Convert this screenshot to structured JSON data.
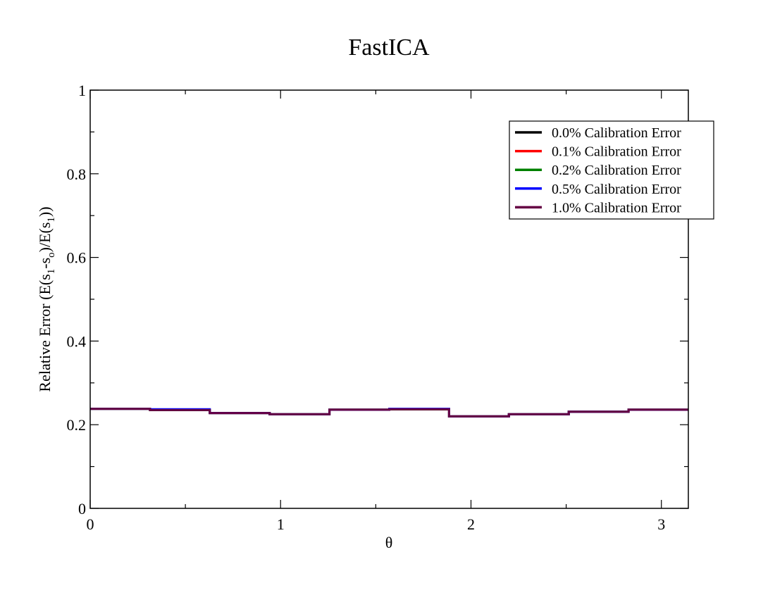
{
  "chart_data": {
    "type": "line",
    "title": "FastICA",
    "xlabel": "θ",
    "ylabel": {
      "prefix": "Relative Error (E(s",
      "sub1": "1",
      "mid1": "-s",
      "sub2": "o",
      "mid2": ")/E(s",
      "sub3": "1",
      "suffix": "))"
    },
    "xlim": [
      0,
      3.1416
    ],
    "ylim": [
      0,
      1
    ],
    "x_ticks": [
      0,
      1,
      2,
      3
    ],
    "x_tick_labels": [
      "0",
      "1",
      "2",
      "3"
    ],
    "y_ticks": [
      0,
      0.2,
      0.4,
      0.6,
      0.8,
      1
    ],
    "y_tick_labels": [
      "0",
      "0.2",
      "0.4",
      "0.6",
      "0.8",
      "1"
    ],
    "grid": false,
    "legend_position": "top-right",
    "step": true,
    "bin_edges": [
      0,
      0.3142,
      0.6283,
      0.9425,
      1.2566,
      1.5708,
      1.885,
      2.1991,
      2.5133,
      2.8274,
      3.1416
    ],
    "series": [
      {
        "name": "0.0% Calibration Error",
        "color": "#000000",
        "values": [
          0.238,
          0.235,
          0.228,
          0.225,
          0.236,
          0.237,
          0.22,
          0.225,
          0.231,
          0.236
        ]
      },
      {
        "name": "0.1% Calibration Error",
        "color": "#ff0000",
        "values": [
          0.238,
          0.235,
          0.228,
          0.225,
          0.236,
          0.237,
          0.22,
          0.225,
          0.231,
          0.236
        ]
      },
      {
        "name": "0.2% Calibration Error",
        "color": "#008000",
        "values": [
          0.238,
          0.235,
          0.228,
          0.225,
          0.236,
          0.237,
          0.22,
          0.225,
          0.231,
          0.236
        ]
      },
      {
        "name": "0.5% Calibration Error",
        "color": "#0000ff",
        "values": [
          0.238,
          0.237,
          0.228,
          0.225,
          0.236,
          0.238,
          0.22,
          0.225,
          0.231,
          0.236
        ]
      },
      {
        "name": "1.0% Calibration Error",
        "color": "#660044",
        "values": [
          0.238,
          0.235,
          0.228,
          0.225,
          0.236,
          0.237,
          0.22,
          0.225,
          0.231,
          0.236
        ]
      }
    ]
  }
}
